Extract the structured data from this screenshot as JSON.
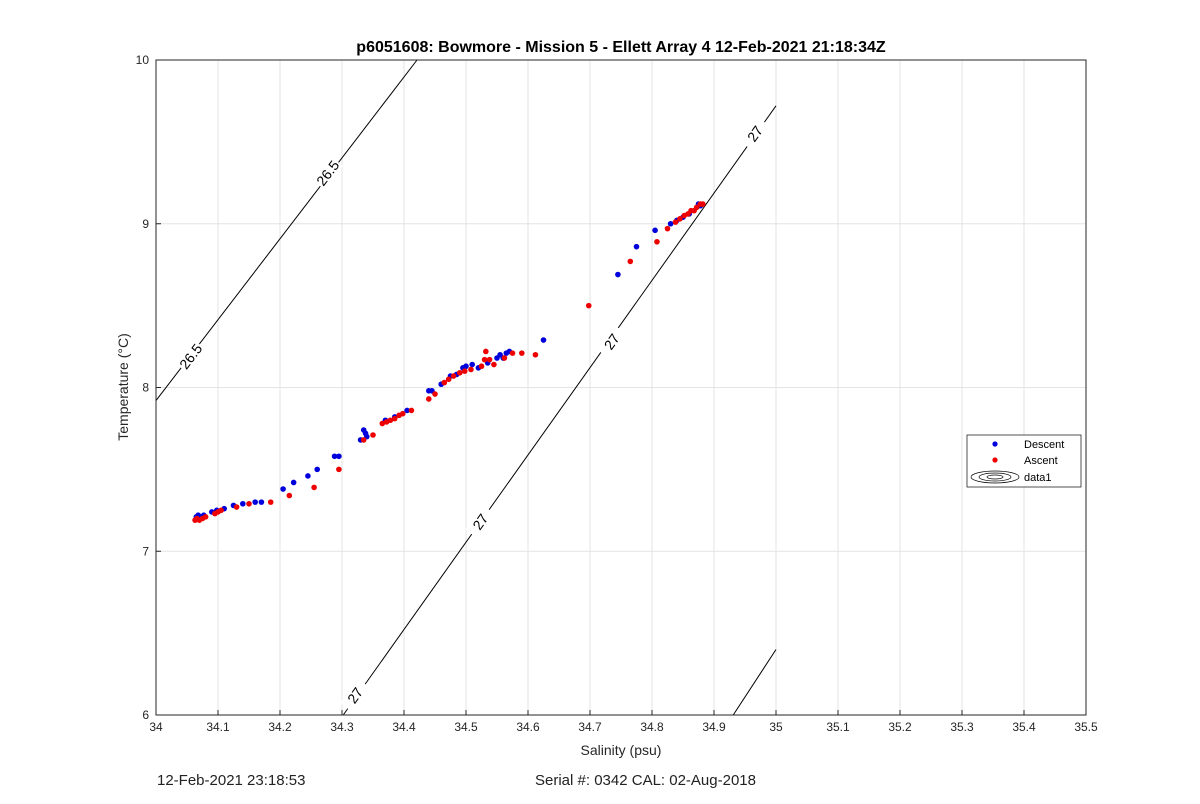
{
  "chart_data": {
    "type": "scatter",
    "title": "p6051608: Bowmore - Mission 5 - Ellett Array 4 12-Feb-2021 21:18:34Z",
    "xlabel": "Salinity (psu)",
    "ylabel": "Temperature (°C)",
    "xlim": [
      34,
      35.5
    ],
    "ylim": [
      6,
      10
    ],
    "x_ticks": [
      "34",
      "34.1",
      "34.2",
      "34.3",
      "34.4",
      "34.5",
      "34.6",
      "34.7",
      "34.8",
      "34.9",
      "35",
      "35.1",
      "35.2",
      "35.3",
      "35.4",
      "35.5"
    ],
    "y_ticks": [
      "6",
      "7",
      "8",
      "9",
      "10"
    ],
    "grid": true,
    "legend_position": "right",
    "legend": [
      "Descent",
      "Ascent",
      "data1"
    ],
    "contours": [
      {
        "level": "26.5",
        "points": [
          [
            34.0,
            7.92
          ],
          [
            34.421,
            10.0
          ]
        ],
        "labels": [
          {
            "text": "26.5",
            "x": 34.056,
            "y": 8.19
          },
          {
            "text": "26.5",
            "x": 34.277,
            "y": 9.31
          }
        ]
      },
      {
        "level": "27",
        "points": [
          [
            34.302,
            6.0
          ],
          [
            35.0,
            9.72
          ]
        ],
        "labels": [
          {
            "text": "27",
            "x": 34.321,
            "y": 6.12
          },
          {
            "text": "27",
            "x": 34.523,
            "y": 7.18
          },
          {
            "text": "27",
            "x": 34.735,
            "y": 8.28
          },
          {
            "text": "27",
            "x": 34.966,
            "y": 9.55
          }
        ]
      },
      {
        "level": "",
        "points": [
          [
            34.931,
            6.0
          ],
          [
            35.0,
            6.4
          ]
        ],
        "labels": []
      }
    ],
    "series": [
      {
        "name": "Descent",
        "color": "#0000dd",
        "points": [
          [
            34.065,
            7.21
          ],
          [
            34.068,
            7.22
          ],
          [
            34.072,
            7.21
          ],
          [
            34.077,
            7.22
          ],
          [
            34.09,
            7.24
          ],
          [
            34.098,
            7.25
          ],
          [
            34.11,
            7.26
          ],
          [
            34.125,
            7.28
          ],
          [
            34.14,
            7.29
          ],
          [
            34.16,
            7.3
          ],
          [
            34.17,
            7.3
          ],
          [
            34.205,
            7.38
          ],
          [
            34.222,
            7.42
          ],
          [
            34.245,
            7.46
          ],
          [
            34.26,
            7.5
          ],
          [
            34.288,
            7.58
          ],
          [
            34.295,
            7.58
          ],
          [
            34.33,
            7.68
          ],
          [
            34.335,
            7.74
          ],
          [
            34.338,
            7.72
          ],
          [
            34.34,
            7.7
          ],
          [
            34.37,
            7.8
          ],
          [
            34.385,
            7.82
          ],
          [
            34.405,
            7.86
          ],
          [
            34.44,
            7.98
          ],
          [
            34.445,
            7.98
          ],
          [
            34.46,
            8.02
          ],
          [
            34.475,
            8.07
          ],
          [
            34.485,
            8.08
          ],
          [
            34.495,
            8.12
          ],
          [
            34.5,
            8.13
          ],
          [
            34.51,
            8.14
          ],
          [
            34.52,
            8.12
          ],
          [
            34.535,
            8.15
          ],
          [
            34.55,
            8.18
          ],
          [
            34.555,
            8.2
          ],
          [
            34.56,
            8.18
          ],
          [
            34.565,
            8.21
          ],
          [
            34.57,
            8.22
          ],
          [
            34.625,
            8.29
          ],
          [
            34.745,
            8.69
          ],
          [
            34.775,
            8.86
          ],
          [
            34.805,
            8.96
          ],
          [
            34.83,
            9.0
          ],
          [
            34.84,
            9.02
          ],
          [
            34.85,
            9.04
          ],
          [
            34.86,
            9.06
          ],
          [
            34.875,
            9.12
          ],
          [
            34.878,
            9.11
          ]
        ]
      },
      {
        "name": "Ascent",
        "color": "#ee0000",
        "points": [
          [
            34.063,
            7.19
          ],
          [
            34.066,
            7.2
          ],
          [
            34.07,
            7.19
          ],
          [
            34.075,
            7.2
          ],
          [
            34.08,
            7.21
          ],
          [
            34.095,
            7.23
          ],
          [
            34.1,
            7.24
          ],
          [
            34.105,
            7.25
          ],
          [
            34.13,
            7.27
          ],
          [
            34.15,
            7.29
          ],
          [
            34.185,
            7.3
          ],
          [
            34.215,
            7.34
          ],
          [
            34.255,
            7.39
          ],
          [
            34.295,
            7.5
          ],
          [
            34.335,
            7.68
          ],
          [
            34.35,
            7.71
          ],
          [
            34.365,
            7.78
          ],
          [
            34.372,
            7.79
          ],
          [
            34.378,
            7.8
          ],
          [
            34.385,
            7.81
          ],
          [
            34.392,
            7.83
          ],
          [
            34.398,
            7.84
          ],
          [
            34.412,
            7.86
          ],
          [
            34.44,
            7.93
          ],
          [
            34.45,
            7.96
          ],
          [
            34.465,
            8.03
          ],
          [
            34.472,
            8.05
          ],
          [
            34.48,
            8.07
          ],
          [
            34.49,
            8.09
          ],
          [
            34.498,
            8.1
          ],
          [
            34.508,
            8.11
          ],
          [
            34.525,
            8.13
          ],
          [
            34.53,
            8.17
          ],
          [
            34.532,
            8.22
          ],
          [
            34.538,
            8.17
          ],
          [
            34.545,
            8.14
          ],
          [
            34.562,
            8.18
          ],
          [
            34.575,
            8.21
          ],
          [
            34.59,
            8.21
          ],
          [
            34.612,
            8.2
          ],
          [
            34.698,
            8.5
          ],
          [
            34.765,
            8.77
          ],
          [
            34.808,
            8.89
          ],
          [
            34.825,
            8.97
          ],
          [
            34.838,
            9.01
          ],
          [
            34.845,
            9.03
          ],
          [
            34.852,
            9.05
          ],
          [
            34.858,
            9.06
          ],
          [
            34.863,
            9.08
          ],
          [
            34.868,
            9.08
          ],
          [
            34.872,
            9.1
          ],
          [
            34.878,
            9.12
          ],
          [
            34.882,
            9.12
          ]
        ]
      }
    ]
  },
  "footer": {
    "timestamp": "12-Feb-2021 23:18:53",
    "serial_cal": "Serial #: 0342  CAL: 02-Aug-2018"
  }
}
